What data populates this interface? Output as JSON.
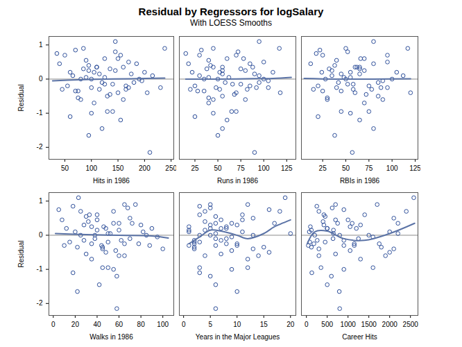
{
  "title": "Residual by Regressors for logSalary",
  "subtitle": "With LOESS Smooths",
  "chart_data": [
    {
      "type": "scatter",
      "xlabel": "Hits in 1986",
      "ylabel": "Residual",
      "color": "#2e4f9a",
      "x": [
        210,
        95,
        120,
        145,
        60,
        155,
        140,
        130,
        75,
        100,
        160,
        180,
        238,
        50,
        85,
        90,
        110,
        125,
        170,
        135,
        45,
        55,
        65,
        70,
        80,
        100,
        115,
        150,
        165,
        175,
        190,
        200,
        105,
        95,
        125,
        140,
        145,
        120,
        85,
        60,
        40,
        35,
        75,
        110,
        130,
        155,
        90,
        100,
        115,
        135,
        160,
        145,
        70,
        170,
        195,
        215,
        185,
        105,
        80,
        150,
        125,
        95,
        165,
        230,
        205
      ],
      "values": [
        -2.15,
        -1.65,
        -1.45,
        1.1,
        -1.1,
        -1.2,
        -0.95,
        -0.95,
        -0.55,
        -1.0,
        -0.6,
        -0.1,
        0.9,
        0.7,
        0.9,
        0.55,
        0.35,
        0.6,
        0.5,
        0.3,
        -0.3,
        -0.2,
        0.1,
        -0.35,
        0.0,
        -0.25,
        0.15,
        -0.4,
        -0.2,
        0.15,
        0.0,
        0.2,
        0.2,
        0.4,
        0.05,
        -0.15,
        0.25,
        -0.1,
        0.3,
        0.2,
        0.45,
        0.75,
        -0.35,
        0.35,
        -0.5,
        0.7,
        0.05,
        0.0,
        -0.3,
        -0.45,
        0.35,
        0.8,
        0.85,
        -0.25,
        -0.05,
        0.1,
        0.45,
        -0.7,
        -0.6,
        0.6,
        -0.15,
        0.25,
        -0.3,
        -0.25,
        -0.4
      ],
      "smooth": {
        "x": [
          27,
          75,
          125,
          175,
          238
        ],
        "values": [
          -0.05,
          -0.02,
          0,
          0.01,
          0.03
        ]
      },
      "hline": 0,
      "xlim": [
        20,
        255
      ],
      "xticks": [
        50,
        100,
        150,
        200,
        250
      ],
      "ylim": [
        -2.35,
        1.25
      ],
      "yticks": [
        -2,
        -1,
        0,
        1
      ]
    },
    {
      "type": "scatter",
      "xlabel": "Runs in 1986",
      "color": "#2e4f9a",
      "tick_labels": "x",
      "x": [
        90,
        50,
        55,
        95,
        25,
        60,
        70,
        65,
        40,
        45,
        80,
        95,
        117,
        30,
        45,
        40,
        55,
        60,
        100,
        75,
        20,
        25,
        30,
        28,
        35,
        48,
        55,
        70,
        85,
        90,
        100,
        110,
        52,
        42,
        62,
        75,
        80,
        58,
        38,
        22,
        18,
        15,
        35,
        45,
        55,
        70,
        40,
        50,
        52,
        68,
        88,
        72,
        32,
        92,
        105,
        95,
        85,
        40,
        45,
        78,
        66,
        55,
        82,
        105,
        118
      ],
      "values": [
        -2.15,
        -1.65,
        -1.45,
        1.1,
        -1.1,
        -1.2,
        -0.95,
        -0.95,
        -0.55,
        -1.0,
        -0.6,
        -0.1,
        0.9,
        0.7,
        0.9,
        0.55,
        0.35,
        0.6,
        0.5,
        0.3,
        -0.3,
        -0.2,
        0.1,
        -0.35,
        0.0,
        -0.25,
        0.15,
        -0.4,
        -0.2,
        0.15,
        0.0,
        0.2,
        0.2,
        0.4,
        0.05,
        -0.15,
        0.25,
        -0.1,
        0.3,
        0.2,
        0.45,
        0.75,
        -0.35,
        0.35,
        -0.5,
        0.7,
        0.05,
        0.0,
        -0.3,
        -0.45,
        0.35,
        0.8,
        0.85,
        -0.25,
        -0.05,
        0.1,
        0.45,
        -0.7,
        -0.6,
        0.6,
        -0.15,
        0.25,
        -0.3,
        -0.25,
        -0.4
      ],
      "smooth": {
        "x": [
          15,
          50,
          80,
          110,
          130
        ],
        "values": [
          0,
          0,
          0.01,
          0.02,
          0.05
        ]
      },
      "hline": 0,
      "xlim": [
        8,
        135
      ],
      "xticks": [
        25,
        50,
        75,
        100,
        125
      ],
      "ylim": [
        -2.35,
        1.25
      ],
      "yticks": [
        -2,
        -1,
        0,
        1
      ]
    },
    {
      "type": "scatter",
      "xlabel": "RBIs in 1986",
      "color": "#2e4f9a",
      "tick_labels": "x",
      "x": [
        57,
        38,
        80,
        80,
        20,
        65,
        75,
        45,
        30,
        55,
        90,
        85,
        117,
        25,
        50,
        40,
        60,
        70,
        95,
        65,
        15,
        20,
        35,
        25,
        28,
        40,
        45,
        60,
        75,
        65,
        100,
        105,
        55,
        38,
        48,
        58,
        70,
        42,
        32,
        24,
        12,
        18,
        45,
        65,
        85,
        95,
        55,
        50,
        58,
        72,
        62,
        52,
        22,
        88,
        90,
        112,
        80,
        70,
        30,
        66,
        52,
        35,
        78,
        95,
        120
      ],
      "values": [
        -2.15,
        -1.65,
        -1.45,
        1.1,
        -1.1,
        -1.2,
        -0.95,
        -0.95,
        -0.55,
        -1.0,
        -0.6,
        -0.1,
        0.9,
        0.7,
        0.9,
        0.55,
        0.35,
        0.6,
        0.5,
        0.3,
        -0.3,
        -0.2,
        0.1,
        -0.35,
        0.0,
        -0.25,
        0.15,
        -0.4,
        -0.2,
        0.15,
        0.0,
        0.2,
        0.2,
        0.4,
        0.05,
        -0.15,
        0.25,
        -0.1,
        0.3,
        0.2,
        0.45,
        0.75,
        -0.35,
        0.35,
        -0.5,
        0.7,
        0.05,
        0.0,
        -0.3,
        -0.45,
        0.35,
        0.8,
        0.85,
        -0.25,
        -0.05,
        0.1,
        0.45,
        -0.7,
        -0.6,
        0.6,
        -0.15,
        0.25,
        -0.3,
        -0.25,
        -0.4
      ],
      "smooth": {
        "x": [
          5,
          40,
          80,
          120
        ],
        "values": [
          0.02,
          0,
          0,
          0.01
        ]
      },
      "hline": 0,
      "xlim": [
        2,
        128
      ],
      "xticks": [
        25,
        50,
        75,
        100,
        125
      ],
      "ylim": [
        -2.35,
        1.25
      ],
      "yticks": [
        -2,
        -1,
        0,
        1
      ]
    },
    {
      "type": "scatter",
      "xlabel": "Walks in 1986",
      "ylabel": "Residual",
      "color": "#2e4f9a",
      "x": [
        58,
        22,
        42,
        23,
        18,
        58,
        45,
        50,
        30,
        55,
        65,
        70,
        75,
        25,
        65,
        30,
        55,
        40,
        70,
        80,
        10,
        15,
        20,
        22,
        25,
        35,
        40,
        45,
        50,
        60,
        85,
        90,
        48,
        32,
        52,
        62,
        35,
        38,
        28,
        12,
        8,
        5,
        45,
        60,
        48,
        55,
        50,
        38,
        44,
        57,
        72,
        68,
        18,
        78,
        95,
        82,
        40,
        35,
        60,
        33,
        28,
        46,
        88,
        65,
        100
      ],
      "values": [
        -2.15,
        -1.65,
        -1.45,
        1.1,
        -1.1,
        -1.2,
        -0.95,
        -0.95,
        -0.55,
        -1.0,
        -0.6,
        -0.1,
        0.9,
        0.7,
        0.9,
        0.55,
        0.35,
        0.6,
        0.5,
        0.3,
        -0.3,
        -0.2,
        0.1,
        -0.35,
        0.0,
        -0.25,
        0.15,
        -0.4,
        -0.2,
        0.15,
        0.0,
        0.2,
        0.2,
        0.4,
        0.05,
        -0.15,
        0.25,
        -0.1,
        0.3,
        0.2,
        0.45,
        0.75,
        -0.35,
        0.35,
        -0.5,
        0.7,
        0.05,
        0.0,
        -0.3,
        -0.45,
        0.35,
        0.8,
        0.85,
        -0.25,
        -0.05,
        0.1,
        0.45,
        -0.7,
        -0.6,
        0.6,
        -0.15,
        0.25,
        -0.3,
        -0.25,
        -0.4
      ],
      "smooth": {
        "x": [
          2,
          30,
          60,
          90,
          105
        ],
        "values": [
          0.05,
          0.02,
          0,
          -0.02,
          -0.08
        ]
      },
      "hline": 0,
      "xlim": [
        -4,
        110
      ],
      "xticks": [
        0,
        20,
        40,
        60,
        80,
        100
      ],
      "ylim": [
        -2.35,
        1.25
      ],
      "yticks": [
        -2,
        -1,
        0,
        1
      ]
    },
    {
      "type": "scatter",
      "xlabel": "Years in the Major Leagues",
      "color": "#2e4f9a",
      "tick_labels": "x",
      "x": [
        6,
        10,
        6,
        19,
        3,
        5,
        12,
        3,
        7,
        9,
        14,
        8,
        5,
        4,
        12,
        6,
        9,
        11,
        13,
        10,
        1,
        2,
        1,
        2,
        3,
        2,
        1,
        2,
        3,
        4,
        5,
        7,
        5,
        4,
        6,
        7,
        8,
        6,
        5,
        8,
        11,
        16,
        15,
        17,
        16,
        18,
        20,
        13,
        10,
        9,
        6,
        5,
        3,
        8,
        9,
        11,
        7,
        12,
        4,
        3,
        2,
        1,
        6,
        10,
        13
      ],
      "values": [
        -2.15,
        -1.65,
        -1.45,
        1.1,
        -1.1,
        -1.2,
        -0.95,
        -0.95,
        -0.55,
        -1.0,
        -0.6,
        -0.1,
        0.9,
        0.7,
        0.9,
        0.55,
        0.35,
        0.6,
        0.5,
        0.3,
        -0.3,
        -0.2,
        0.1,
        -0.35,
        0.0,
        -0.25,
        0.15,
        -0.4,
        -0.2,
        0.15,
        0.0,
        0.2,
        0.2,
        0.4,
        0.05,
        -0.15,
        0.25,
        -0.1,
        0.3,
        0.2,
        0.45,
        0.75,
        -0.35,
        0.35,
        -0.5,
        0.7,
        0.05,
        0.0,
        -0.3,
        -0.45,
        0.35,
        0.8,
        0.85,
        -0.25,
        -0.05,
        0.1,
        0.45,
        -0.7,
        -0.6,
        0.6,
        -0.15,
        0.25,
        -0.3,
        -0.25,
        -0.4
      ],
      "smooth": {
        "x": [
          1,
          3,
          5,
          7,
          10,
          12,
          15,
          17,
          20
        ],
        "values": [
          -0.25,
          -0.05,
          0.15,
          0.12,
          0.0,
          -0.1,
          0.05,
          0.25,
          0.45
        ]
      },
      "hline": 0,
      "xlim": [
        -0.8,
        21
      ],
      "xticks": [
        0,
        5,
        10,
        15,
        20
      ],
      "ylim": [
        -2.35,
        1.25
      ],
      "yticks": [
        -2,
        -1,
        0,
        1
      ]
    },
    {
      "type": "scatter",
      "xlabel": "Career Hits",
      "color": "#2e4f9a",
      "tick_labels": "x",
      "x": [
        800,
        790,
        500,
        2580,
        130,
        600,
        1600,
        350,
        700,
        900,
        1900,
        1250,
        700,
        300,
        1700,
        450,
        1100,
        1400,
        2100,
        1300,
        45,
        80,
        70,
        120,
        200,
        180,
        120,
        300,
        450,
        650,
        800,
        1200,
        500,
        400,
        650,
        900,
        1050,
        640,
        420,
        500,
        700,
        900,
        1800,
        2200,
        2000,
        2400,
        2200,
        1500,
        1150,
        1050,
        750,
        620,
        250,
        1150,
        1600,
        2000,
        1000,
        1300,
        300,
        420,
        260,
        95,
        900,
        1750,
        2100
      ],
      "values": [
        -2.15,
        -1.65,
        -1.45,
        1.1,
        -1.1,
        -1.2,
        -0.95,
        -0.95,
        -0.55,
        -1.0,
        -0.6,
        -0.1,
        0.9,
        0.7,
        0.9,
        0.55,
        0.35,
        0.6,
        0.5,
        0.3,
        -0.3,
        -0.2,
        0.1,
        -0.35,
        0.0,
        -0.25,
        0.15,
        -0.4,
        -0.2,
        0.15,
        0.0,
        0.2,
        0.2,
        0.4,
        0.05,
        -0.15,
        0.25,
        -0.1,
        0.3,
        0.2,
        0.45,
        0.75,
        -0.35,
        0.35,
        -0.5,
        0.7,
        0.05,
        0.0,
        -0.3,
        -0.45,
        0.35,
        0.8,
        0.85,
        -0.25,
        -0.05,
        0.1,
        0.45,
        -0.7,
        -0.6,
        0.6,
        -0.15,
        0.25,
        -0.3,
        -0.25,
        -0.4
      ],
      "smooth": {
        "x": [
          20,
          200,
          500,
          900,
          1400,
          2000,
          2600
        ],
        "values": [
          -0.25,
          0.1,
          0.12,
          -0.1,
          -0.15,
          0.05,
          0.35
        ]
      },
      "hline": 0,
      "xlim": [
        -120,
        2680
      ],
      "xticks": [
        0,
        500,
        1000,
        1500,
        2000,
        2500
      ],
      "ylim": [
        -2.35,
        1.25
      ],
      "yticks": [
        -2,
        -1,
        0,
        1
      ]
    }
  ]
}
